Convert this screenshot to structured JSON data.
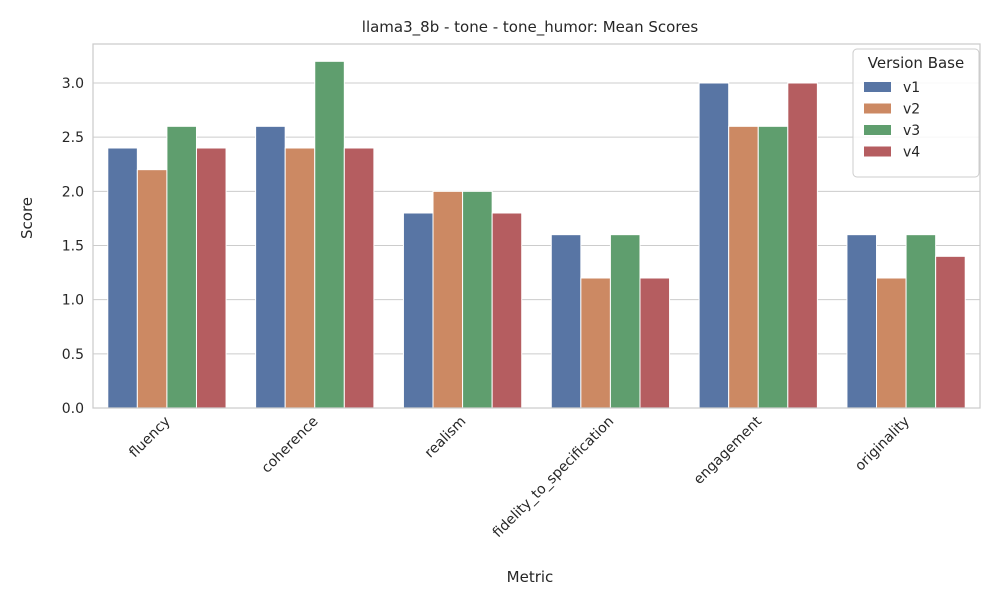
{
  "chart_data": {
    "type": "bar",
    "title": "llama3_8b - tone - tone_humor: Mean Scores",
    "xlabel": "Metric",
    "ylabel": "Score",
    "categories": [
      "fluency",
      "coherence",
      "realism",
      "fidelity_to_specification",
      "engagement",
      "originality"
    ],
    "series": [
      {
        "name": "v1",
        "color": "#5875a4",
        "values": [
          2.4,
          2.6,
          1.8,
          1.6,
          3.0,
          1.6
        ]
      },
      {
        "name": "v2",
        "color": "#cc8963",
        "values": [
          2.2,
          2.4,
          2.0,
          1.2,
          2.6,
          1.2
        ]
      },
      {
        "name": "v3",
        "color": "#5f9e6e",
        "values": [
          2.6,
          3.2,
          2.0,
          1.6,
          2.6,
          1.6
        ]
      },
      {
        "name": "v4",
        "color": "#b55d60",
        "values": [
          2.4,
          2.4,
          1.8,
          1.2,
          3.0,
          1.4
        ]
      }
    ],
    "yticks": [
      0.0,
      0.5,
      1.0,
      1.5,
      2.0,
      2.5,
      3.0
    ],
    "ytick_labels": [
      "0.0",
      "0.5",
      "1.0",
      "1.5",
      "2.0",
      "2.5",
      "3.0"
    ],
    "ylim": [
      0,
      3.36
    ],
    "grid": true,
    "legend": {
      "title": "Version Base",
      "position": "top-right"
    }
  }
}
